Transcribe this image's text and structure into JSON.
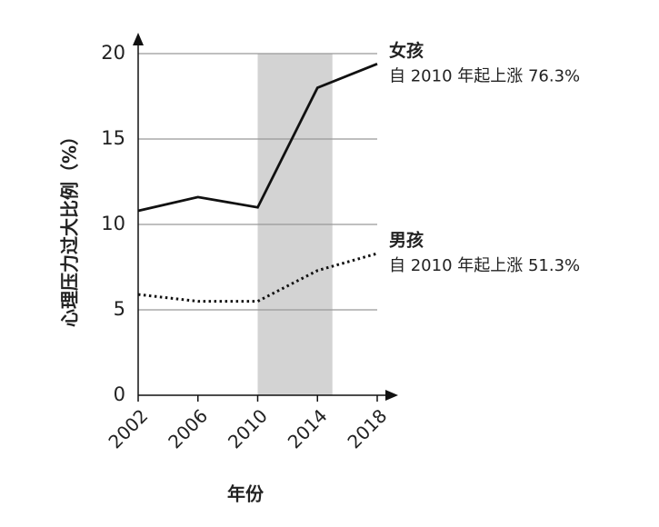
{
  "chart_data": {
    "type": "line",
    "x_label": "年份",
    "y_label": "心理压力过大比例（%）",
    "x": [
      2002,
      2006,
      2010,
      2014,
      2018
    ],
    "xlim": [
      2002,
      2018
    ],
    "xticks": [
      2002,
      2006,
      2010,
      2014,
      2018
    ],
    "ylim": [
      0,
      20
    ],
    "yticks": [
      0,
      5,
      10,
      15,
      20
    ],
    "grid": true,
    "shaded_x": [
      2010,
      2015
    ],
    "shade_color": "#d3d3d3",
    "series": [
      {
        "name": "女孩",
        "color": "#111111",
        "style": "solid",
        "values": [
          10.8,
          11.6,
          11.0,
          18.0,
          19.4
        ],
        "annotation": "自 2010 年起上涨 76.3%"
      },
      {
        "name": "男孩",
        "color": "#111111",
        "style": "dotted",
        "values": [
          5.9,
          5.5,
          5.5,
          7.3,
          8.3
        ],
        "annotation": "自 2010 年起上涨 51.3%"
      }
    ]
  }
}
